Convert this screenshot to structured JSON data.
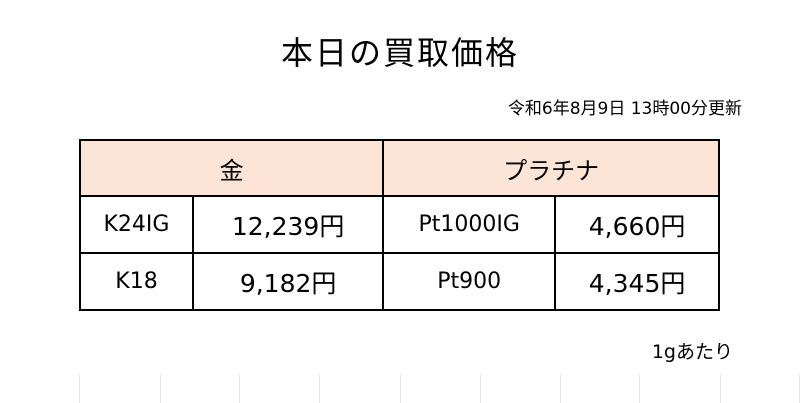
{
  "title": "本日の買取価格",
  "updated": "令和6年8月9日 13時00分更新",
  "table": {
    "headers": [
      "金",
      "プラチナ"
    ],
    "header_bg": "#fce4d6",
    "rows": [
      {
        "gold_name": "K24IG",
        "gold_price": "12,239円",
        "pt_name": "Pt1000IG",
        "pt_price": "4,660円"
      },
      {
        "gold_name": "K18",
        "gold_price": "9,182円",
        "pt_name": "Pt900",
        "pt_price": "4,345円"
      }
    ]
  },
  "unit_note": "1gあたり"
}
